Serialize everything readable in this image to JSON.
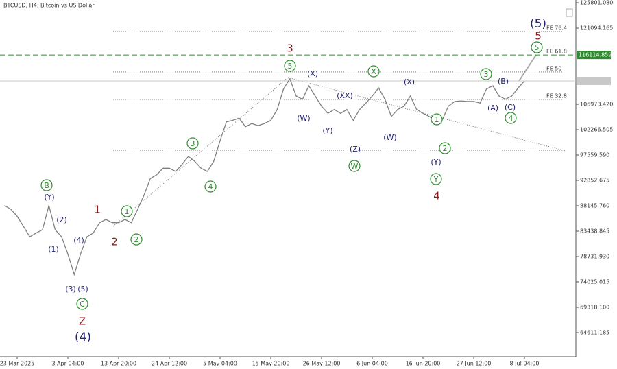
{
  "chart_data": {
    "type": "line",
    "title": "BTCUSD, H4:  Bitcoin vs US Dollar",
    "color": "#7f7f7f",
    "categories": [
      null,
      null,
      "23 Mar 2025",
      null,
      null,
      null,
      null,
      null,
      null,
      null,
      "3 Apr 04:00",
      null,
      null,
      null,
      null,
      null,
      null,
      null,
      "13 Apr 20:00",
      null,
      null,
      null,
      null,
      null,
      null,
      null,
      "24 Apr 12:00",
      null,
      null,
      null,
      null,
      null,
      null,
      null,
      "5 May 04:00",
      null,
      null,
      null,
      null,
      null,
      null,
      null,
      "15 May 20:00",
      null,
      null,
      null,
      null,
      null,
      null,
      null,
      "26 May 12:00",
      null,
      null,
      null,
      null,
      null,
      null,
      null,
      "6 Jun 04:00",
      null,
      null,
      null,
      null,
      null,
      null,
      null,
      "16 Jun 20:00",
      null,
      null,
      null,
      null,
      null,
      null,
      null,
      "27 Jun 12:00",
      null,
      null,
      null,
      null,
      null,
      null,
      null,
      "8 Jul 04:00"
    ],
    "values": [
      88200,
      87500,
      86200,
      84300,
      82400,
      83100,
      83700,
      88200,
      83700,
      82400,
      79200,
      75400,
      79200,
      82400,
      83100,
      85000,
      85600,
      85000,
      85000,
      85600,
      85000,
      87500,
      90100,
      93200,
      93900,
      95100,
      95100,
      94500,
      95800,
      97300,
      96400,
      95100,
      94500,
      96400,
      100200,
      103700,
      104000,
      104400,
      102800,
      103400,
      103000,
      103400,
      104000,
      106000,
      109800,
      111700,
      108500,
      107900,
      110400,
      108500,
      106600,
      105300,
      106000,
      105300,
      106000,
      104000,
      106000,
      107200,
      108500,
      110000,
      107900,
      104700,
      106000,
      106600,
      108500,
      106000,
      105300,
      104700,
      104000,
      104000,
      106600,
      107500,
      107600,
      107500,
      107500,
      107200,
      109800,
      110400,
      108500,
      107900,
      108500,
      110000,
      111300
    ],
    "ylim": [
      60158,
      126310
    ],
    "yticks": [
      {
        "value": 125801.08,
        "label": "125801.080"
      },
      {
        "value": 121094.165,
        "label": "121094.165"
      },
      {
        "value": 106973.42,
        "label": "106973.420"
      },
      {
        "value": 102266.505,
        "label": "102266.505"
      },
      {
        "value": 97559.59,
        "label": "97559.590"
      },
      {
        "value": 92852.675,
        "label": "92852.675"
      },
      {
        "value": 88145.76,
        "label": "88145.760"
      },
      {
        "value": 83438.845,
        "label": "83438.845"
      },
      {
        "value": 78731.93,
        "label": "78731.930"
      },
      {
        "value": 74025.015,
        "label": "74025.015"
      },
      {
        "value": 69318.1,
        "label": "69318.100"
      },
      {
        "value": 64611.185,
        "label": "64611.185"
      }
    ],
    "levels": [
      {
        "label": "FE 76.4",
        "value": 120460
      },
      {
        "label": "FE 61.8",
        "value": 116114.859,
        "color": "#2e8b2e"
      },
      {
        "label": "FE 50",
        "value": 112950
      },
      {
        "label": "FE 32.8",
        "value": 107870
      },
      {
        "value": 98450
      }
    ],
    "annotations": [
      "B",
      "C",
      "1",
      "2",
      "3",
      "4",
      "5",
      "W",
      "X",
      "1",
      "2",
      "Y",
      "3",
      "4",
      "5",
      "(Y)",
      "(2)",
      "(1)",
      "(4)",
      "(3)",
      "(5)",
      "(4)",
      "(X)",
      "(W)",
      "(Y)",
      "(XX)",
      "(Z)",
      "(W)",
      "(X)",
      "(Y)",
      "(A)",
      "(B)",
      "(C)",
      "(5)",
      "1",
      "2",
      "3",
      "4",
      "5",
      "Z"
    ]
  }
}
